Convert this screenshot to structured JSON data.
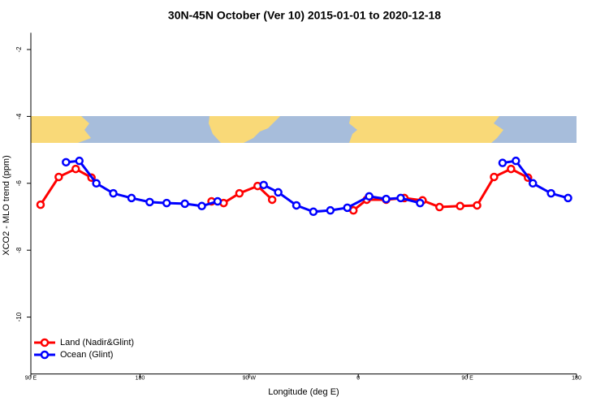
{
  "chart_data": {
    "type": "line",
    "title": "30N-45N October (Ver 10)   2015-01-01 to 2020-12-18",
    "x_label": "Longitude (deg E)",
    "y_label": "XCO2 - MLO trend (ppm)",
    "xlim": [
      90,
      540
    ],
    "ylim": [
      -11.7,
      -1.5
    ],
    "xticks": [
      {
        "value": 90,
        "label": "90 E"
      },
      {
        "value": 180,
        "label": "180"
      },
      {
        "value": 270,
        "label": "90 W"
      },
      {
        "value": 360,
        "label": "0"
      },
      {
        "value": 450,
        "label": "90 E"
      },
      {
        "value": 540,
        "label": "180"
      }
    ],
    "yticks": [
      -2,
      -4,
      -6,
      -8,
      -10
    ],
    "legend": "bottom-left",
    "series": [
      {
        "name": "Land (Nadir&Glint)",
        "color": "#ff0000",
        "x": [
          98,
          113,
          127,
          140,
          null,
          239,
          249,
          262,
          277,
          289,
          null,
          356,
          367,
          383,
          398,
          413,
          427,
          444,
          458,
          472,
          486,
          500
        ],
        "values": [
          -6.64,
          -5.81,
          -5.57,
          -5.83,
          null,
          -6.54,
          -6.59,
          -6.3,
          -6.08,
          -6.49,
          null,
          -6.81,
          -6.49,
          -6.49,
          -6.44,
          -6.51,
          -6.71,
          -6.68,
          -6.66,
          -5.81,
          -5.57,
          -5.83
        ]
      },
      {
        "name": "Ocean (Glint)",
        "color": "#0000ff",
        "x": [
          119,
          130,
          144,
          158,
          173,
          188,
          202,
          217,
          231,
          244,
          null,
          282,
          294,
          309,
          323,
          337,
          351,
          369,
          383,
          395,
          411,
          null,
          479,
          490,
          504,
          519,
          533
        ],
        "values": [
          -5.37,
          -5.33,
          -6.0,
          -6.3,
          -6.44,
          -6.56,
          -6.59,
          -6.61,
          -6.68,
          -6.54,
          null,
          -6.05,
          -6.27,
          -6.66,
          -6.85,
          -6.81,
          -6.73,
          -6.39,
          -6.47,
          -6.44,
          -6.59,
          null,
          -5.39,
          -5.33,
          -6.0,
          -6.3,
          -6.44
        ]
      }
    ]
  }
}
